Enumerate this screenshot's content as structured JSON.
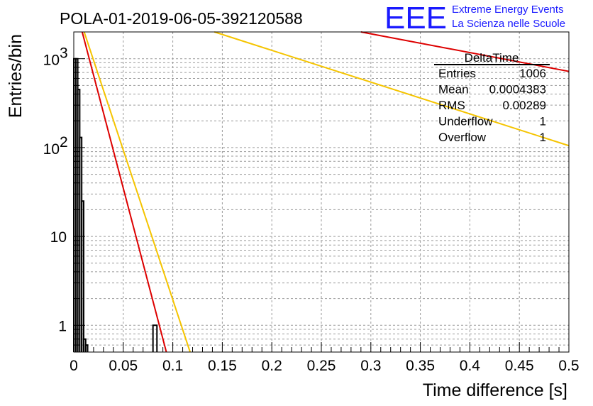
{
  "chart_data": {
    "type": "line",
    "title": "POLA-01-2019-06-05-392120588",
    "xlabel": "Time difference [s]",
    "ylabel": "Entries/bin",
    "xlim": [
      0,
      0.5
    ],
    "ylim": [
      0.5,
      2000
    ],
    "yscale": "log",
    "grid": true,
    "x_ticks": [
      {
        "value": 0,
        "label": "0"
      },
      {
        "value": 0.05,
        "label": "0.05"
      },
      {
        "value": 0.1,
        "label": "0.1"
      },
      {
        "value": 0.15,
        "label": "0.15"
      },
      {
        "value": 0.2,
        "label": "0.2"
      },
      {
        "value": 0.25,
        "label": "0.25"
      },
      {
        "value": 0.3,
        "label": "0.3"
      },
      {
        "value": 0.35,
        "label": "0.35"
      },
      {
        "value": 0.4,
        "label": "0.4"
      },
      {
        "value": 0.45,
        "label": "0.45"
      },
      {
        "value": 0.5,
        "label": "0.5"
      }
    ],
    "y_ticks": [
      {
        "value": 1,
        "label": "1"
      },
      {
        "value": 10,
        "label": "10"
      },
      {
        "value": 100,
        "label": "10",
        "sup": "2"
      },
      {
        "value": 1000,
        "label": "10",
        "sup": "3"
      }
    ],
    "histogram": {
      "name": "DeltaTime",
      "color": "#000000",
      "bins": [
        {
          "x0": 0.0,
          "x1": 0.002,
          "count": 1000
        },
        {
          "x0": 0.002,
          "x1": 0.004,
          "count": 1000
        },
        {
          "x0": 0.004,
          "x1": 0.006,
          "count": 450
        },
        {
          "x0": 0.006,
          "x1": 0.008,
          "count": 130
        },
        {
          "x0": 0.008,
          "x1": 0.01,
          "count": 25
        },
        {
          "x0": 0.01,
          "x1": 0.012,
          "count": 0.7
        },
        {
          "x0": 0.012,
          "x1": 0.014,
          "count": 0.6
        },
        {
          "x0": 0.08,
          "x1": 0.084,
          "count": 1
        }
      ]
    },
    "series": [
      {
        "color": "#dd0000",
        "x": [
          0.0085,
          0.0935,
          0.29,
          0.5
        ],
        "y": [
          2000,
          0.5,
          2000,
          720
        ]
      },
      {
        "color": "#f5c400",
        "x": [
          0.0105,
          0.1175,
          0.142,
          0.5
        ],
        "y": [
          2000,
          0.5,
          2000,
          105
        ]
      }
    ],
    "stats": {
      "title": "DeltaTime",
      "rows": [
        {
          "label": "Entries",
          "value": "1006"
        },
        {
          "label": "Mean",
          "value": "0.0004383"
        },
        {
          "label": "RMS",
          "value": "0.00289"
        },
        {
          "label": "Underflow",
          "value": "1"
        },
        {
          "label": "Overflow",
          "value": "1"
        }
      ]
    }
  },
  "logo": {
    "text": "EEE",
    "line1": "Extreme Energy Events",
    "line2": "La Scienza nelle Scuole",
    "color": "#1a1aff"
  }
}
